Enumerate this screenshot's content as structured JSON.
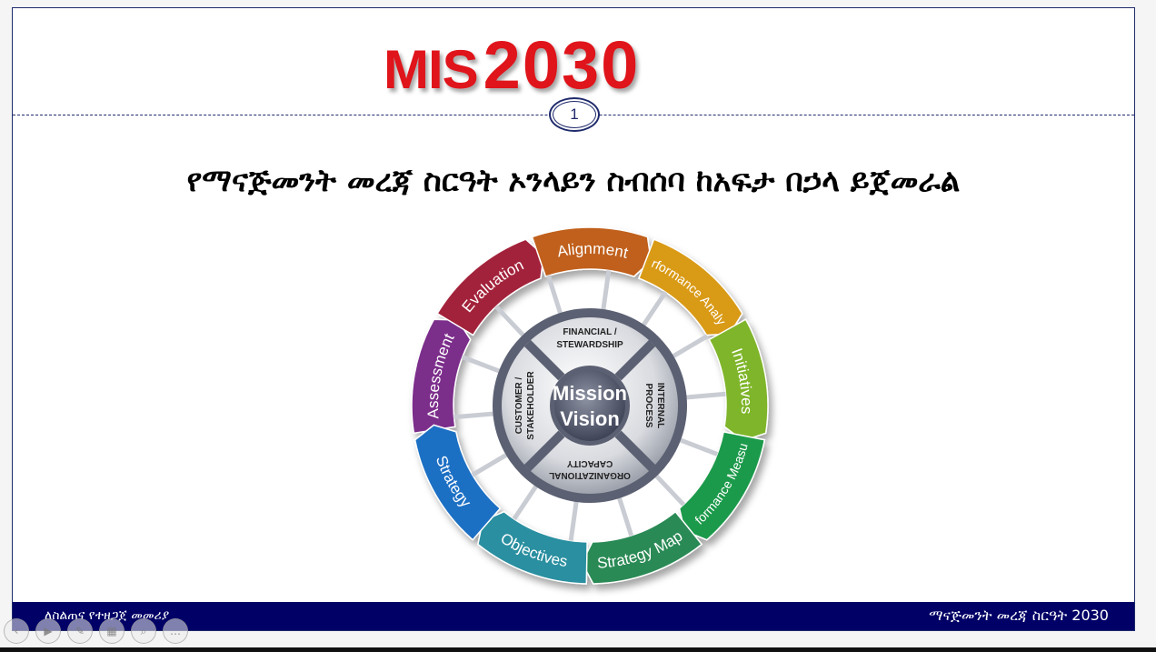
{
  "slide": {
    "title_mis": "MIS",
    "title_year": "2030",
    "slide_number": "1",
    "headline": "የማናጅመንት መረጃ ስርዓት ኦንላይን ስብሰባ ከአፍታ በኃላ ይጀመራል",
    "footer_left": "ለስልጠና የተዘጋጀ መመሪያ",
    "footer_right": "ማናጅመንት መረጃ ስርዓት 2030"
  },
  "wheel": {
    "center_line1": "Mission",
    "center_line2": "Vision",
    "quadrants": {
      "top_1": "FINANCIAL /",
      "top_2": "STEWARDSHIP",
      "right_1": "INTERNAL",
      "right_2": "PROCESS",
      "bottom_1": "ORGANIZATIONAL",
      "bottom_2": "CAPACITY",
      "left_1": "CUSTOMER /",
      "left_2": "STAKEHOLDER"
    },
    "segments": [
      {
        "label": "Assessment",
        "color": "#7b2d8b"
      },
      {
        "label": "Evaluation",
        "color": "#a3243a"
      },
      {
        "label": "Alignment",
        "color": "#c0601e"
      },
      {
        "label": "Performance Analysis",
        "color": "#d99a18"
      },
      {
        "label": "Initiatives",
        "color": "#7fb52a"
      },
      {
        "label": "Performance Measures",
        "color": "#1f9a4c"
      },
      {
        "label": "Strategy Map",
        "color": "#2b8a55"
      },
      {
        "label": "Objectives",
        "color": "#2a8fa0"
      },
      {
        "label": "Strategy",
        "color": "#1f6fc4"
      }
    ]
  },
  "toolbar": {
    "icons": [
      "prev-icon",
      "play-icon",
      "pen-icon",
      "slides-grid-icon",
      "zoom-icon",
      "more-icon"
    ],
    "glyphs": [
      "‹",
      "▶",
      "✎",
      "▦",
      "⌕",
      "…"
    ]
  },
  "colors": {
    "title_red": "#e0141b",
    "footer_navy": "#000066",
    "border_navy": "#1f2a6b"
  }
}
